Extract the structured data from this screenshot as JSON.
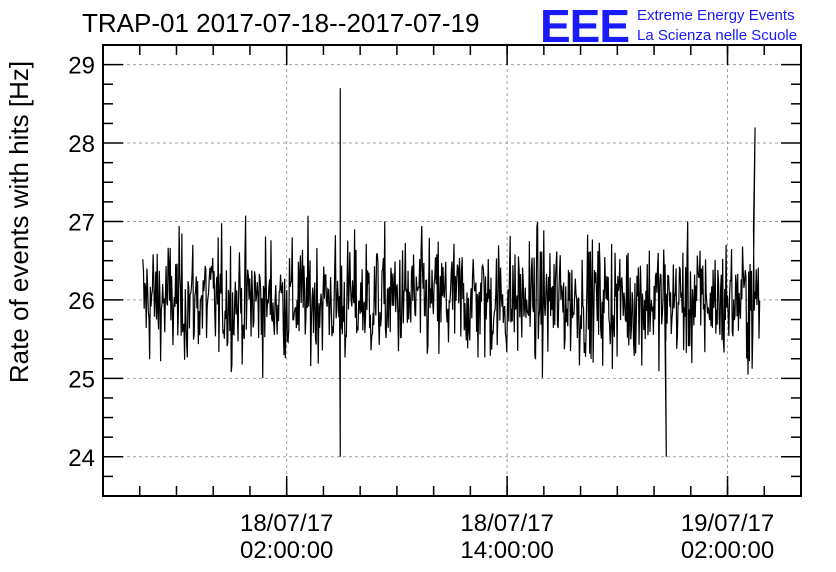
{
  "chart_data": {
    "type": "line",
    "title": "TRAP-01 2017-07-18--2017-07-19",
    "ylabel": "Rate of events with hits [Hz]",
    "xlabel": "",
    "ylim": [
      23.5,
      29.25
    ],
    "yticks": [
      "24",
      "25",
      "26",
      "27",
      "28",
      "29"
    ],
    "xlim": [
      "2017-07-17T16:00:00",
      "2017-07-19T06:00:00"
    ],
    "xticks": [
      {
        "date": "18/07/17",
        "time": "02:00:00",
        "t": "2017-07-18T02:00:00"
      },
      {
        "date": "18/07/17",
        "time": "14:00:00",
        "t": "2017-07-18T14:00:00"
      },
      {
        "date": "19/07/17",
        "time": "02:00:00",
        "t": "2017-07-19T02:00:00"
      }
    ],
    "grid": true,
    "series": [
      {
        "data_range": [
          "2017-07-17T18:10:00",
          "2017-07-19T03:45:00"
        ],
        "mean": 26.0,
        "min": 24.0,
        "max": 28.7,
        "notable_points": [
          {
            "t": "2017-07-18T04:55:00",
            "value": 28.7
          },
          {
            "t": "2017-07-18T04:55:00",
            "value": 24.0
          },
          {
            "t": "2017-07-19T03:30:00",
            "value": 28.2
          },
          {
            "t": "2017-07-18T22:40:00",
            "value": 24.0
          }
        ],
        "color": "#000000"
      }
    ]
  },
  "logo": {
    "mark": "EEE",
    "line1": "Extreme Energy Events",
    "line2": "La Scienza nelle Scuole",
    "color": "#1a1aff"
  }
}
